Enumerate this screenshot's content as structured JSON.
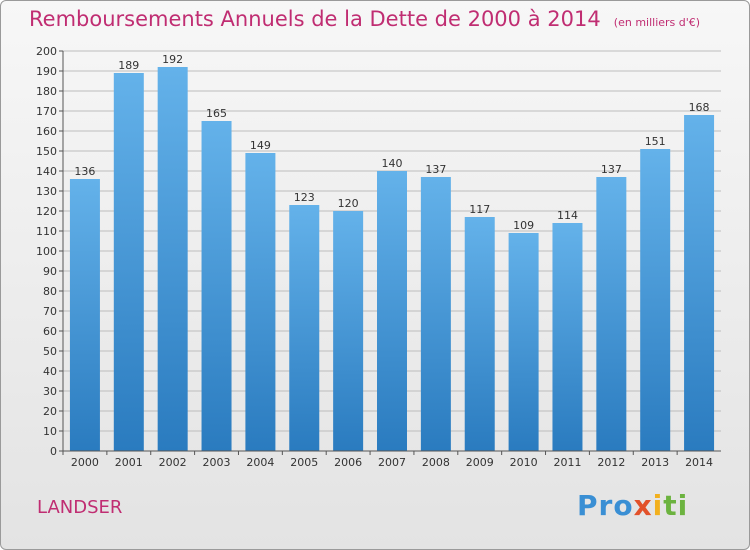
{
  "title": "Remboursements Annuels de la Dette de 2000 à 2014",
  "subtitle": "(en milliers d'€)",
  "commune": "LANDSER",
  "logo": {
    "p1": "Pro",
    "p2": "x",
    "p3": "i",
    "p4": "ti"
  },
  "colors": {
    "title": "#c02d72",
    "bar_top": "#64b2ea",
    "bar_bottom": "#2a7bbf",
    "grid": "#bdbdbd"
  },
  "chart_data": {
    "type": "bar",
    "title": "Remboursements Annuels de la Dette de 2000 à 2014",
    "xlabel": "",
    "ylabel": "",
    "ylim": [
      0,
      200
    ],
    "ytick_step": 10,
    "grid": true,
    "categories": [
      "2000",
      "2001",
      "2002",
      "2003",
      "2004",
      "2005",
      "2006",
      "2007",
      "2008",
      "2009",
      "2010",
      "2011",
      "2012",
      "2013",
      "2014"
    ],
    "values": [
      136,
      189,
      192,
      165,
      149,
      123,
      120,
      140,
      137,
      117,
      109,
      114,
      137,
      151,
      168
    ]
  }
}
